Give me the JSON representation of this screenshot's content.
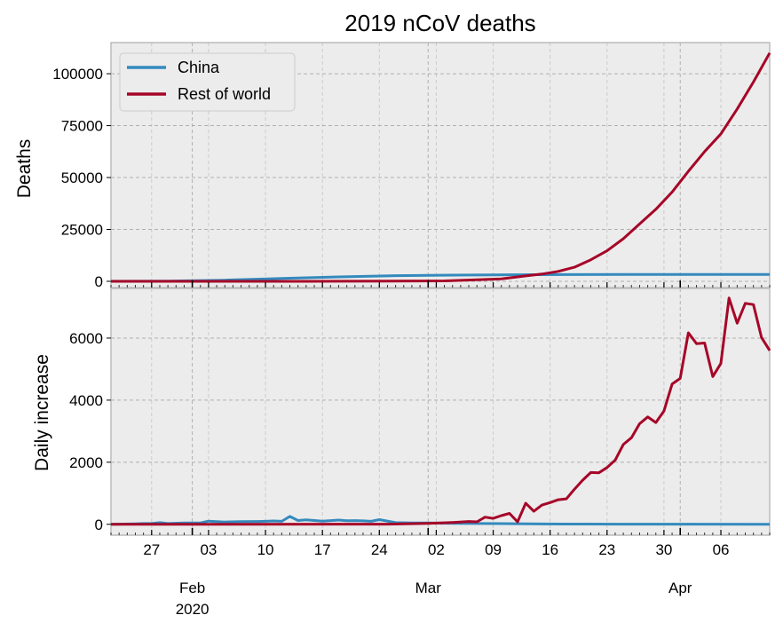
{
  "chart_data": [
    {
      "type": "line",
      "title": "2019 nCoV deaths",
      "ylabel": "Deaths",
      "ylim": [
        -3000,
        115000
      ],
      "yticks": [
        0,
        25000,
        50000,
        75000,
        100000
      ],
      "legend": {
        "placement": "top-left"
      },
      "grid": true,
      "series": [
        {
          "name": "China",
          "color": "#348abd",
          "x": [
            "2020-01-22",
            "2020-01-29",
            "2020-02-05",
            "2020-02-12",
            "2020-02-19",
            "2020-02-26",
            "2020-03-04",
            "2020-03-11",
            "2020-03-18",
            "2020-03-25",
            "2020-04-01",
            "2020-04-08",
            "2020-04-12"
          ],
          "values": [
            17,
            132,
            565,
            1370,
            2120,
            2720,
            2980,
            3170,
            3250,
            3290,
            3310,
            3340,
            3340
          ]
        },
        {
          "name": "Rest of world",
          "color": "#a60628",
          "x": [
            "2020-01-22",
            "2020-02-15",
            "2020-02-25",
            "2020-03-03",
            "2020-03-07",
            "2020-03-10",
            "2020-03-13",
            "2020-03-15",
            "2020-03-17",
            "2020-03-19",
            "2020-03-21",
            "2020-03-23",
            "2020-03-25",
            "2020-03-27",
            "2020-03-29",
            "2020-03-31",
            "2020-04-02",
            "2020-04-04",
            "2020-04-06",
            "2020-04-08",
            "2020-04-10",
            "2020-04-12"
          ],
          "values": [
            0,
            10,
            70,
            220,
            720,
            1200,
            2600,
            3500,
            4800,
            6800,
            10400,
            14700,
            20500,
            27600,
            34700,
            43000,
            53000,
            62500,
            71000,
            83000,
            96000,
            110000
          ]
        }
      ]
    },
    {
      "type": "line",
      "ylabel": "Daily increase",
      "ylim": [
        -350,
        7600
      ],
      "yticks": [
        0,
        2000,
        4000,
        6000
      ],
      "grid": true,
      "x_tick_labels": [
        "27",
        "03",
        "10",
        "17",
        "24",
        "02",
        "09",
        "16",
        "23",
        "30",
        "06"
      ],
      "x_tick_dates": [
        "2020-01-27",
        "2020-02-03",
        "2020-02-10",
        "2020-02-17",
        "2020-02-24",
        "2020-03-02",
        "2020-03-09",
        "2020-03-16",
        "2020-03-23",
        "2020-03-30",
        "2020-04-06"
      ],
      "x_month_labels": [
        {
          "date": "2020-02-01",
          "month": "Feb",
          "year": "2020"
        },
        {
          "date": "2020-03-01",
          "month": "Mar",
          "year": ""
        },
        {
          "date": "2020-04-01",
          "month": "Apr",
          "year": ""
        }
      ],
      "series": [
        {
          "name": "China",
          "color": "#348abd",
          "x": [
            "2020-01-22",
            "2020-01-25",
            "2020-01-26",
            "2020-01-27",
            "2020-01-28",
            "2020-01-29",
            "2020-01-31",
            "2020-02-02",
            "2020-02-03",
            "2020-02-05",
            "2020-02-07",
            "2020-02-09",
            "2020-02-10",
            "2020-02-11",
            "2020-02-12",
            "2020-02-13",
            "2020-02-14",
            "2020-02-15",
            "2020-02-17",
            "2020-02-19",
            "2020-02-20",
            "2020-02-21",
            "2020-02-22",
            "2020-02-23",
            "2020-02-24",
            "2020-02-26",
            "2020-02-28",
            "2020-03-01",
            "2020-03-05",
            "2020-03-10",
            "2020-03-15",
            "2020-03-20",
            "2020-03-25",
            "2020-04-01",
            "2020-04-12"
          ],
          "values": [
            0,
            15,
            24,
            26,
            52,
            26,
            43,
            46,
            103,
            73,
            86,
            89,
            97,
            108,
            97,
            254,
            121,
            143,
            98,
            136,
            114,
            118,
            109,
            97,
            150,
            52,
            44,
            42,
            31,
            22,
            10,
            8,
            6,
            4,
            2
          ]
        },
        {
          "name": "Rest of world",
          "color": "#a60628",
          "x": [
            "2020-01-22",
            "2020-02-25",
            "2020-03-01",
            "2020-03-04",
            "2020-03-06",
            "2020-03-07",
            "2020-03-08",
            "2020-03-09",
            "2020-03-10",
            "2020-03-11",
            "2020-03-12",
            "2020-03-13",
            "2020-03-14",
            "2020-03-15",
            "2020-03-16",
            "2020-03-17",
            "2020-03-18",
            "2020-03-19",
            "2020-03-20",
            "2020-03-21",
            "2020-03-22",
            "2020-03-23",
            "2020-03-24",
            "2020-03-25",
            "2020-03-26",
            "2020-03-27",
            "2020-03-28",
            "2020-03-29",
            "2020-03-30",
            "2020-03-31",
            "2020-04-01",
            "2020-04-02",
            "2020-04-03",
            "2020-04-04",
            "2020-04-05",
            "2020-04-06",
            "2020-04-07",
            "2020-04-08",
            "2020-04-09",
            "2020-04-10",
            "2020-04-11",
            "2020-04-12"
          ],
          "values": [
            0,
            5,
            30,
            60,
            90,
            80,
            230,
            190,
            280,
            350,
            80,
            680,
            420,
            620,
            700,
            790,
            820,
            1130,
            1420,
            1670,
            1660,
            1830,
            2070,
            2570,
            2790,
            3240,
            3460,
            3280,
            3650,
            4520,
            4700,
            6170,
            5820,
            5840,
            4760,
            5180,
            7290,
            6480,
            7120,
            7080,
            6020,
            5600
          ]
        }
      ]
    }
  ]
}
